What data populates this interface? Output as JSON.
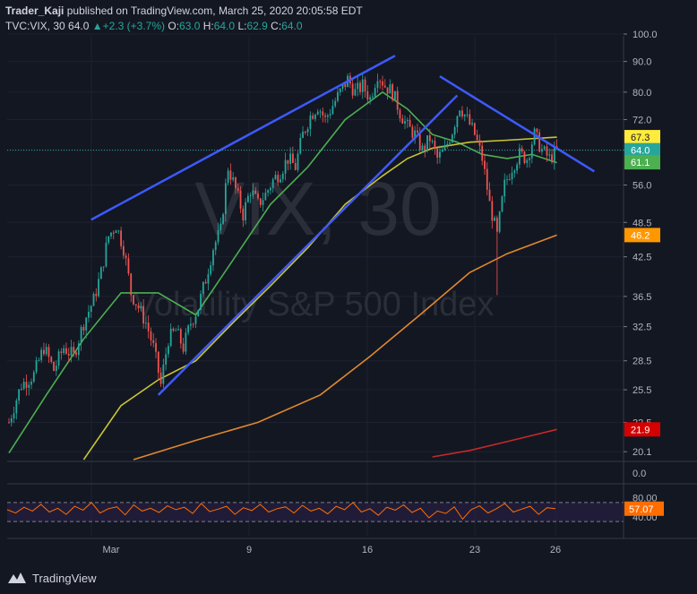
{
  "header": {
    "author": "Trader_Kaji",
    "published": "published on TradingView.com, March 25, 2020 20:05:58 EDT",
    "symbol": "TVC:VIX, 30",
    "last": "64.0",
    "change": "+2.3 (+3.7%)",
    "o_label": "O:",
    "o": "63.0",
    "h_label": "H:",
    "h": "64.0",
    "l_label": "L:",
    "l": "62.9",
    "c_label": "C:",
    "c": "64.0"
  },
  "watermark": {
    "title": "VIX, 30",
    "subtitle": "Volatility S&P 500 Index"
  },
  "footer": {
    "brand": "TradingView"
  },
  "colors": {
    "bg": "#131722",
    "up": "#26a69a",
    "down": "#ef5350",
    "ma20": "#4caf50",
    "ma50": "#c9c531",
    "ma100": "#e0882e",
    "ma200": "#c62828",
    "trend": "#3d5afe",
    "rsi": "#ff6d00"
  },
  "chart_data": [
    {
      "type": "candlestick",
      "title": "TVC:VIX, 30",
      "x_ticks": [
        "Mar",
        "9",
        "16",
        "23",
        "26"
      ],
      "y_scale": "log",
      "ylim": [
        19.5,
        100
      ],
      "y_ticks": [
        "100.0",
        "90.0",
        "80.0",
        "72.0",
        "64.0",
        "56.0",
        "48.5",
        "42.5",
        "36.5",
        "32.5",
        "28.5",
        "25.5",
        "22.5",
        "20.1"
      ],
      "last_price": 64.0,
      "price_labels": [
        {
          "value": "67.3",
          "color": "#ffeb3b"
        },
        {
          "value": "64.0",
          "color": "#26a69a"
        },
        {
          "value": "61.1",
          "color": "#4caf50"
        },
        {
          "value": "46.2",
          "color": "#ff9800"
        },
        {
          "value": "21.9",
          "color": "#d50000"
        }
      ],
      "price_path": [
        [
          0,
          22.5
        ],
        [
          5,
          26
        ],
        [
          10,
          27
        ],
        [
          14,
          30
        ],
        [
          18,
          27.5
        ],
        [
          22,
          30
        ],
        [
          26,
          29
        ],
        [
          30,
          33
        ],
        [
          34,
          36
        ],
        [
          37,
          40
        ],
        [
          40,
          46
        ],
        [
          43,
          48
        ],
        [
          46,
          44
        ],
        [
          49,
          37
        ],
        [
          52,
          35
        ],
        [
          55,
          33
        ],
        [
          58,
          30
        ],
        [
          61,
          26
        ],
        [
          64,
          31
        ],
        [
          67,
          32
        ],
        [
          70,
          30
        ],
        [
          73,
          33
        ],
        [
          76,
          35
        ],
        [
          79,
          39
        ],
        [
          82,
          44
        ],
        [
          85,
          47
        ],
        [
          88,
          60
        ],
        [
          91,
          55
        ],
        [
          94,
          50
        ],
        [
          97,
          55
        ],
        [
          100,
          52
        ],
        [
          103,
          54
        ],
        [
          106,
          57
        ],
        [
          109,
          59
        ],
        [
          112,
          62
        ],
        [
          115,
          60
        ],
        [
          118,
          68
        ],
        [
          121,
          73
        ],
        [
          124,
          76
        ],
        [
          127,
          72
        ],
        [
          130,
          76
        ],
        [
          133,
          80
        ],
        [
          136,
          84
        ],
        [
          139,
          80
        ],
        [
          142,
          82
        ],
        [
          145,
          78
        ],
        [
          148,
          86
        ],
        [
          151,
          82
        ],
        [
          154,
          80
        ],
        [
          157,
          74
        ],
        [
          160,
          70
        ],
        [
          163,
          68
        ],
        [
          166,
          64
        ],
        [
          169,
          67
        ],
        [
          172,
          62
        ],
        [
          175,
          64
        ],
        [
          178,
          69
        ],
        [
          181,
          76
        ],
        [
          184,
          72
        ],
        [
          187,
          68
        ],
        [
          190,
          62
        ],
        [
          193,
          52
        ],
        [
          196,
          46
        ],
        [
          199,
          56
        ],
        [
          202,
          60
        ],
        [
          205,
          63
        ],
        [
          208,
          62
        ],
        [
          211,
          68
        ],
        [
          214,
          64
        ],
        [
          217,
          62
        ],
        [
          220,
          64
        ]
      ],
      "series": [
        {
          "name": "",
          "color": "#4caf50",
          "points": [
            [
              0,
              20
            ],
            [
              15,
              25
            ],
            [
              30,
              31
            ],
            [
              45,
              37
            ],
            [
              60,
              37
            ],
            [
              75,
              34
            ],
            [
              90,
              42
            ],
            [
              105,
              52
            ],
            [
              120,
              60
            ],
            [
              135,
              72
            ],
            [
              150,
              80
            ],
            [
              160,
              75
            ],
            [
              170,
              68
            ],
            [
              180,
              66
            ],
            [
              190,
              63
            ],
            [
              200,
              62
            ],
            [
              210,
              63
            ],
            [
              220,
              61
            ]
          ]
        },
        {
          "name": "",
          "color": "#c9c531",
          "points": [
            [
              30,
              19.5
            ],
            [
              45,
              24
            ],
            [
              60,
              26.5
            ],
            [
              75,
              28.5
            ],
            [
              90,
              33
            ],
            [
              105,
              38
            ],
            [
              120,
              44
            ],
            [
              135,
              52
            ],
            [
              150,
              58
            ],
            [
              160,
              62
            ],
            [
              170,
              64.5
            ],
            [
              185,
              66
            ],
            [
              200,
              66.5
            ],
            [
              220,
              67.3
            ]
          ]
        },
        {
          "name": "",
          "color": "#e0882e",
          "points": [
            [
              50,
              19.5
            ],
            [
              75,
              21
            ],
            [
              100,
              22.5
            ],
            [
              125,
              25
            ],
            [
              145,
              29
            ],
            [
              165,
              34
            ],
            [
              185,
              40
            ],
            [
              200,
              43
            ],
            [
              220,
              46.2
            ]
          ]
        },
        {
          "name": "",
          "color": "#c62828",
          "points": [
            [
              170,
              19.7
            ],
            [
              185,
              20.2
            ],
            [
              200,
              20.9
            ],
            [
              220,
              21.9
            ]
          ]
        }
      ],
      "trendlines": [
        {
          "from": [
            33,
            49
          ],
          "to": [
            155,
            92
          ]
        },
        {
          "from": [
            60,
            25
          ],
          "to": [
            180,
            79
          ]
        },
        {
          "from": [
            173,
            85
          ],
          "to": [
            235,
            59
          ]
        }
      ]
    },
    {
      "type": "line",
      "title": "RSI",
      "ylim": [
        0,
        100
      ],
      "y_ticks": [
        "80.00",
        "40.00"
      ],
      "bands": [
        30,
        70
      ],
      "last_value": "57.07",
      "values": [
        55,
        48,
        60,
        52,
        66,
        50,
        58,
        45,
        62,
        54,
        70,
        48,
        57,
        61,
        44,
        65,
        52,
        58,
        49,
        63,
        55,
        60,
        47,
        68,
        51,
        56,
        62,
        45,
        59,
        53,
        66,
        50,
        57,
        61,
        48,
        64,
        52,
        58,
        46,
        62,
        55,
        70,
        50,
        57,
        43,
        60,
        54,
        65,
        49,
        58,
        38,
        52,
        47,
        61,
        35,
        55,
        63,
        48,
        57,
        68,
        50,
        56,
        62,
        45,
        59,
        57
      ]
    },
    {
      "type": "histogram",
      "title": "",
      "y_ticks": [
        "0.0"
      ]
    }
  ]
}
